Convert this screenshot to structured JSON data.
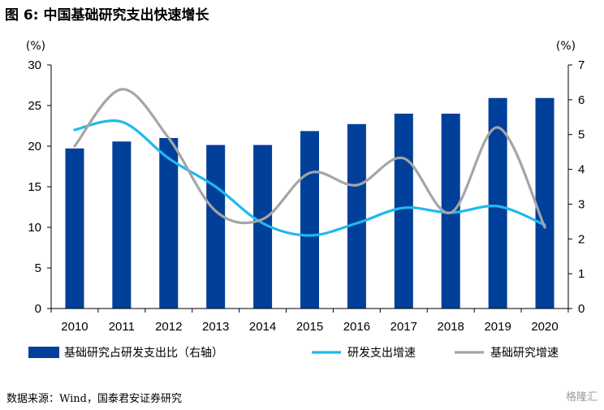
{
  "figure": {
    "title": "图 6:  中国基础研究支出快速增长",
    "source": "数据来源：Wind，国泰君安证券研究",
    "watermark": "格隆汇"
  },
  "chart_data": {
    "type": "bar",
    "categories": [
      "2010",
      "2011",
      "2012",
      "2013",
      "2014",
      "2015",
      "2016",
      "2017",
      "2018",
      "2019",
      "2020"
    ],
    "left_axis": {
      "unit": "(%)",
      "ylim": [
        0,
        30
      ],
      "ticks": [
        0,
        5,
        10,
        15,
        20,
        25,
        30
      ]
    },
    "right_axis": {
      "unit": "(%)",
      "ylim": [
        0,
        7
      ],
      "ticks": [
        0,
        1,
        2,
        3,
        4,
        5,
        6,
        7
      ]
    },
    "series": [
      {
        "name": "基础研究占研发支出比（右轴）",
        "type": "bar",
        "axis": "right",
        "color": "#003f9a",
        "values": [
          4.6,
          4.8,
          4.9,
          4.7,
          4.7,
          5.1,
          5.3,
          5.6,
          5.6,
          6.05,
          6.05
        ]
      },
      {
        "name": "研发支出增速",
        "type": "line",
        "axis": "left",
        "color": "#1fb8ef",
        "values": [
          22,
          23,
          18.5,
          15,
          10.5,
          9,
          10.5,
          12.4,
          11.8,
          12.6,
          10.3
        ]
      },
      {
        "name": "基础研究增速",
        "type": "line",
        "axis": "left",
        "color": "#a5a5a5",
        "values": [
          20,
          27,
          21,
          12,
          11,
          16.7,
          15.2,
          18.5,
          11.8,
          22.3,
          10
        ]
      }
    ],
    "legend_position": "bottom",
    "grid": false
  }
}
